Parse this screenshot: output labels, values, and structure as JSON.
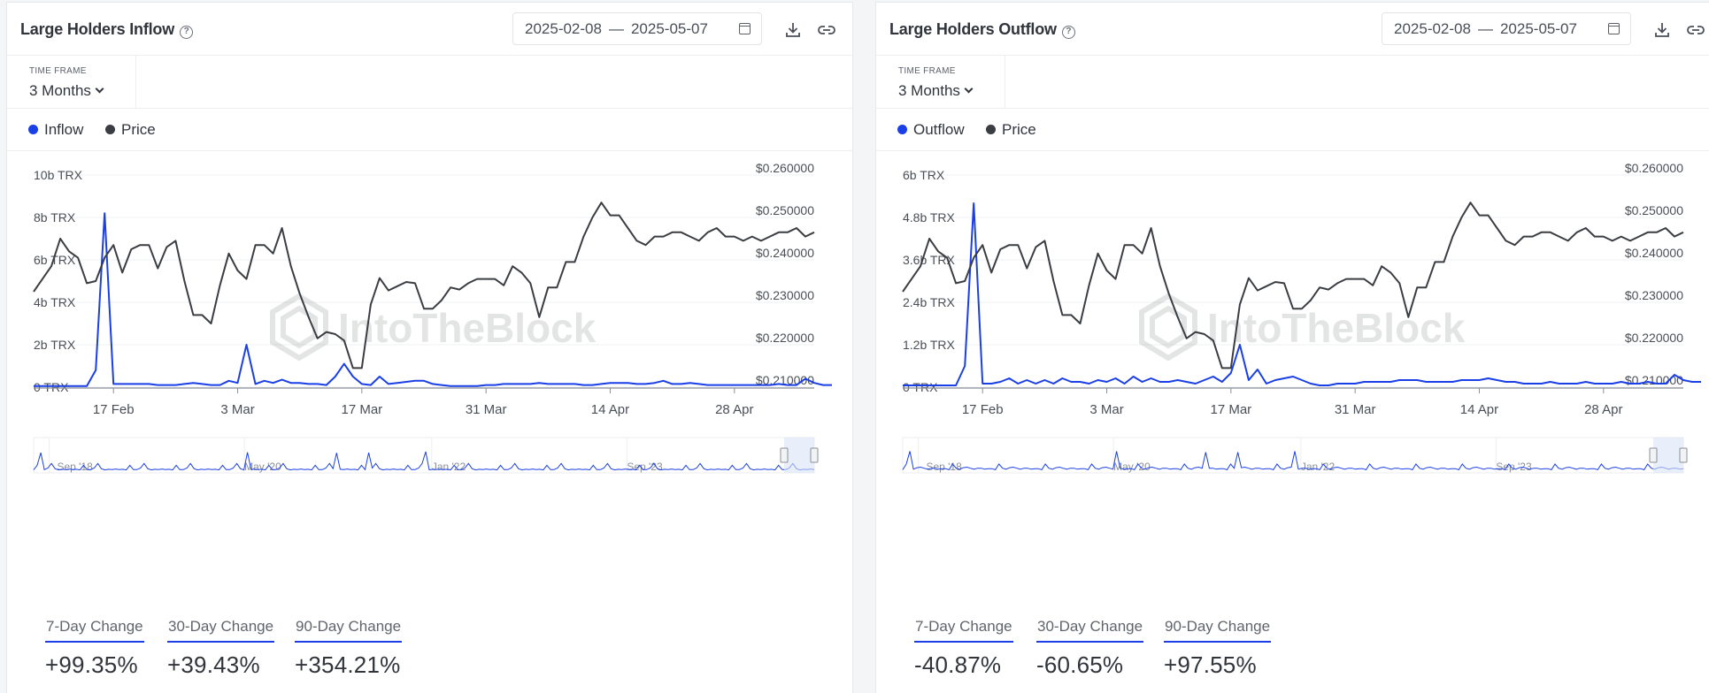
{
  "panels": [
    {
      "title": "Large Holders Inflow",
      "date_from": "2025-02-08",
      "date_sep": "—",
      "date_to": "2025-05-07",
      "timeframe_label": "TIME FRAME",
      "timeframe_value": "3 Months",
      "legend": [
        {
          "label": "Inflow",
          "color": "#1a3fe6"
        },
        {
          "label": "Price",
          "color": "#3a3d42"
        }
      ],
      "changes": [
        {
          "label": "7-Day Change",
          "value": "+99.35%"
        },
        {
          "label": "30-Day Change",
          "value": "+39.43%"
        },
        {
          "label": "90-Day Change",
          "value": "+354.21%"
        }
      ]
    },
    {
      "title": "Large Holders Outflow",
      "date_from": "2025-02-08",
      "date_sep": "—",
      "date_to": "2025-05-07",
      "timeframe_label": "TIME FRAME",
      "timeframe_value": "3 Months",
      "legend": [
        {
          "label": "Outflow",
          "color": "#1a3fe6"
        },
        {
          "label": "Price",
          "color": "#3a3d42"
        }
      ],
      "changes": [
        {
          "label": "7-Day Change",
          "value": "-40.87%"
        },
        {
          "label": "30-Day Change",
          "value": "-60.65%"
        },
        {
          "label": "90-Day Change",
          "value": "+97.55%"
        }
      ]
    }
  ],
  "watermark": "IntoTheBlock",
  "chart_data": [
    {
      "type": "line",
      "title": "Large Holders Inflow",
      "x_ticks": [
        "17 Feb",
        "3 Mar",
        "17 Mar",
        "31 Mar",
        "14 Apr",
        "28 Apr"
      ],
      "x_tick_day_index": [
        9,
        23,
        37,
        51,
        65,
        79
      ],
      "days": 89,
      "y_left_ticks": [
        "0 TRX",
        "2b TRX",
        "4b TRX",
        "6b TRX",
        "8b TRX",
        "10b TRX"
      ],
      "y_left_range": [
        0,
        10
      ],
      "y_right_ticks": [
        "$0.210000",
        "$0.220000",
        "$0.230000",
        "$0.240000",
        "$0.250000",
        "$0.260000"
      ],
      "y_right_range": [
        0.21,
        0.26
      ],
      "series": [
        {
          "name": "Inflow",
          "unit": "b TRX",
          "color": "#1a3fe6",
          "values": [
            0.05,
            0.05,
            0.05,
            0.05,
            0.05,
            0.05,
            0.05,
            0.8,
            8.2,
            0.15,
            0.15,
            0.15,
            0.15,
            0.15,
            0.1,
            0.1,
            0.1,
            0.15,
            0.2,
            0.15,
            0.1,
            0.1,
            0.3,
            0.2,
            2.0,
            0.15,
            0.3,
            0.2,
            0.35,
            0.2,
            0.2,
            0.15,
            0.15,
            0.1,
            0.5,
            1.1,
            0.5,
            0.15,
            0.1,
            0.5,
            0.15,
            0.2,
            0.25,
            0.3,
            0.3,
            0.15,
            0.1,
            0.05,
            0.05,
            0.05,
            0.05,
            0.1,
            0.1,
            0.15,
            0.15,
            0.15,
            0.15,
            0.2,
            0.15,
            0.15,
            0.15,
            0.15,
            0.1,
            0.1,
            0.15,
            0.2,
            0.2,
            0.2,
            0.15,
            0.15,
            0.2,
            0.3,
            0.15,
            0.15,
            0.2,
            0.15,
            0.1,
            0.1,
            0.1,
            0.1,
            0.1,
            0.1,
            0.1,
            0.1,
            0.15,
            0.1,
            0.1,
            0.4,
            0.2,
            0.1,
            0.1
          ]
        },
        {
          "name": "Price",
          "unit": "USD",
          "color": "#3a3d42",
          "values": [
            0.2325,
            0.2355,
            0.2385,
            0.245,
            0.242,
            0.2405,
            0.2345,
            0.235,
            0.2405,
            0.2435,
            0.237,
            0.2425,
            0.2435,
            0.2435,
            0.238,
            0.243,
            0.2445,
            0.235,
            0.227,
            0.227,
            0.225,
            0.234,
            0.2415,
            0.2375,
            0.2355,
            0.2435,
            0.2435,
            0.2415,
            0.2475,
            0.2385,
            0.232,
            0.2265,
            0.2215,
            0.223,
            0.2225,
            0.221,
            0.2145,
            0.2145,
            0.2295,
            0.2357,
            0.2328,
            0.2338,
            0.2348,
            0.2345,
            0.2285,
            0.2285,
            0.2305,
            0.2335,
            0.233,
            0.2345,
            0.2355,
            0.2355,
            0.2355,
            0.234,
            0.2385,
            0.237,
            0.2345,
            0.2265,
            0.2335,
            0.2335,
            0.2395,
            0.2395,
            0.2455,
            0.25,
            0.2535,
            0.2505,
            0.2505,
            0.2475,
            0.2445,
            0.2435,
            0.2455,
            0.2455,
            0.2465,
            0.2465,
            0.2455,
            0.2445,
            0.2465,
            0.2475,
            0.2455,
            0.2455,
            0.2445,
            0.2455,
            0.2445,
            0.2455,
            0.2465,
            0.2465,
            0.2475,
            0.2455,
            0.2465
          ]
        }
      ],
      "navigator_ticks": [
        "Sep '18",
        "May '20",
        "Jan '22",
        "Sep '23"
      ]
    },
    {
      "type": "line",
      "title": "Large Holders Outflow",
      "x_ticks": [
        "17 Feb",
        "3 Mar",
        "17 Mar",
        "31 Mar",
        "14 Apr",
        "28 Apr"
      ],
      "x_tick_day_index": [
        9,
        23,
        37,
        51,
        65,
        79
      ],
      "days": 89,
      "y_left_ticks": [
        "0 TRX",
        "1.2b TRX",
        "2.4b TRX",
        "3.6b TRX",
        "4.8b TRX",
        "6b TRX"
      ],
      "y_left_range": [
        0,
        6
      ],
      "y_right_ticks": [
        "$0.210000",
        "$0.220000",
        "$0.230000",
        "$0.240000",
        "$0.250000",
        "$0.260000"
      ],
      "y_right_range": [
        0.21,
        0.26
      ],
      "series": [
        {
          "name": "Outflow",
          "unit": "b TRX",
          "color": "#1a3fe6",
          "values": [
            0.05,
            0.05,
            0.05,
            0.05,
            0.05,
            0.05,
            0.05,
            0.6,
            5.2,
            0.1,
            0.1,
            0.15,
            0.25,
            0.1,
            0.2,
            0.1,
            0.2,
            0.1,
            0.25,
            0.15,
            0.15,
            0.1,
            0.2,
            0.15,
            0.25,
            0.1,
            0.3,
            0.15,
            0.25,
            0.15,
            0.15,
            0.2,
            0.15,
            0.1,
            0.2,
            0.3,
            0.15,
            0.4,
            1.2,
            0.2,
            0.5,
            0.1,
            0.2,
            0.25,
            0.3,
            0.2,
            0.1,
            0.05,
            0.05,
            0.1,
            0.1,
            0.1,
            0.15,
            0.15,
            0.15,
            0.15,
            0.2,
            0.2,
            0.2,
            0.15,
            0.15,
            0.15,
            0.15,
            0.2,
            0.2,
            0.2,
            0.25,
            0.2,
            0.15,
            0.15,
            0.1,
            0.1,
            0.1,
            0.15,
            0.1,
            0.1,
            0.1,
            0.15,
            0.1,
            0.1,
            0.1,
            0.15,
            0.1,
            0.1,
            0.15,
            0.1,
            0.1,
            0.35,
            0.2,
            0.15,
            0.15
          ]
        },
        {
          "name": "Price",
          "unit": "USD",
          "color": "#3a3d42",
          "values": [
            0.2325,
            0.2355,
            0.2385,
            0.245,
            0.242,
            0.2405,
            0.2345,
            0.235,
            0.2405,
            0.2435,
            0.237,
            0.2425,
            0.2435,
            0.2435,
            0.238,
            0.243,
            0.2445,
            0.235,
            0.227,
            0.227,
            0.225,
            0.234,
            0.2415,
            0.2375,
            0.2355,
            0.2435,
            0.2435,
            0.2415,
            0.2475,
            0.2385,
            0.232,
            0.2265,
            0.2215,
            0.223,
            0.2225,
            0.221,
            0.2145,
            0.2145,
            0.2295,
            0.2357,
            0.2328,
            0.2338,
            0.2348,
            0.2345,
            0.2285,
            0.2285,
            0.2305,
            0.2335,
            0.233,
            0.2345,
            0.2355,
            0.2355,
            0.2355,
            0.234,
            0.2385,
            0.237,
            0.2345,
            0.2265,
            0.2335,
            0.2335,
            0.2395,
            0.2395,
            0.2455,
            0.25,
            0.2535,
            0.2505,
            0.2505,
            0.2475,
            0.2445,
            0.2435,
            0.2455,
            0.2455,
            0.2465,
            0.2465,
            0.2455,
            0.2445,
            0.2465,
            0.2475,
            0.2455,
            0.2455,
            0.2445,
            0.2455,
            0.2445,
            0.2455,
            0.2465,
            0.2465,
            0.2475,
            0.2455,
            0.2465
          ]
        }
      ],
      "navigator_ticks": [
        "Sep '18",
        "May '20",
        "Jan '22",
        "Sep '23"
      ]
    }
  ]
}
